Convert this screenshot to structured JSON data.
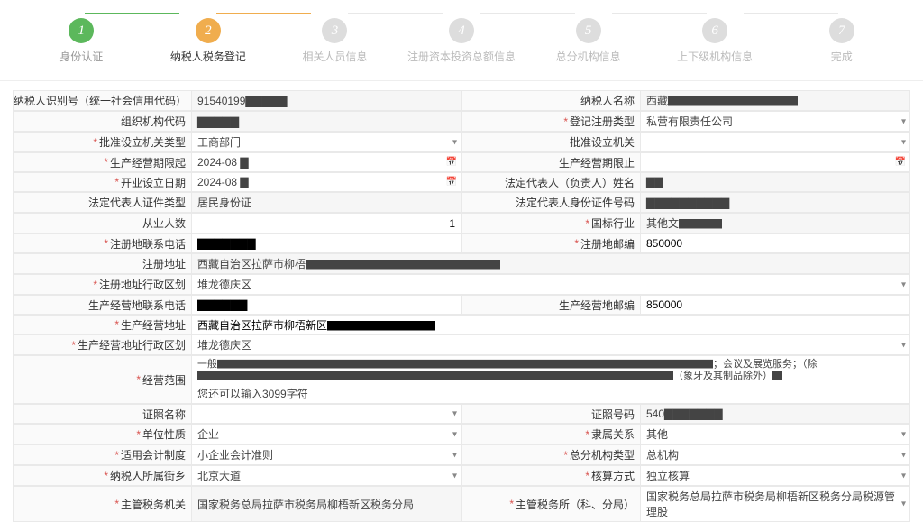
{
  "steps": [
    {
      "num": "1",
      "label": "身份认证",
      "state": "done"
    },
    {
      "num": "2",
      "label": "纳税人税务登记",
      "state": "active"
    },
    {
      "num": "3",
      "label": "相关人员信息",
      "state": "pending"
    },
    {
      "num": "4",
      "label": "注册资本投资总额信息",
      "state": "pending"
    },
    {
      "num": "5",
      "label": "总分机构信息",
      "state": "pending"
    },
    {
      "num": "6",
      "label": "上下级机构信息",
      "state": "pending"
    },
    {
      "num": "7",
      "label": "完成",
      "state": "pending"
    }
  ],
  "row1": {
    "l1": "纳税人识别号（统一社会信用代码）",
    "v1": "91540199▇▇▇▇▇",
    "l2": "纳税人名称",
    "v2": "西藏▇▇▇▇▇▇▇▇▇▇▇▇"
  },
  "row2": {
    "l1": "组织机构代码",
    "v1": "▇▇▇▇▇",
    "l2": "登记注册类型",
    "v2": "私营有限责任公司"
  },
  "row3": {
    "l1": "批准设立机关类型",
    "v1": "工商部门",
    "l2": "批准设立机关",
    "v2": ""
  },
  "row4": {
    "l1": "生产经营期限起",
    "v1": "2024-08 ▇",
    "l2": "生产经营期限止",
    "v2": ""
  },
  "row5": {
    "l1": "开业设立日期",
    "v1": "2024-08 ▇",
    "l2": "法定代表人（负责人）姓名",
    "v2": "▇▇"
  },
  "row6": {
    "l1": "法定代表人证件类型",
    "v1": "居民身份证",
    "l2": "法定代表人身份证件号码",
    "v2": "▇▇▇▇▇▇▇▇▇▇"
  },
  "row7": {
    "l1": "从业人数",
    "v1": "1",
    "l2": "国标行业",
    "v2": "其他文▇▇▇▇"
  },
  "row8": {
    "l1": "注册地联系电话",
    "v1": "▇▇▇▇▇▇▇",
    "l2": "注册地邮编",
    "v2": "850000"
  },
  "row9": {
    "l1": "注册地址",
    "v1": "西藏自治区拉萨市柳梧▇▇▇▇▇▇▇▇▇▇▇▇▇▇▇▇▇▇"
  },
  "row10": {
    "l1": "注册地址行政区划",
    "v1": "堆龙德庆区"
  },
  "row11": {
    "l1": "生产经营地联系电话",
    "v1": "▇▇▇▇▇▇",
    "l2": "生产经营地邮编",
    "v2": "850000"
  },
  "row12": {
    "l1": "生产经营地址",
    "v1": "西藏自治区拉萨市柳梧新区▇▇▇▇▇▇▇▇▇▇"
  },
  "row13": {
    "l1": "生产经营地址行政区划",
    "v1": "堆龙德庆区"
  },
  "row14": {
    "l1": "经营范围",
    "v1": "一般▇▇▇▇▇▇▇▇▇▇▇▇▇▇▇▇▇▇▇▇▇▇▇▇▇▇▇▇▇▇▇▇▇▇▇▇▇▇▇▇▇▇▇▇▇▇▇▇▇▇；会议及展览服务；（除▇▇▇▇▇▇▇▇▇▇▇▇▇▇▇▇▇▇▇▇▇▇▇▇▇▇▇▇▇▇▇▇▇▇▇▇▇▇▇▇▇▇▇▇▇▇▇▇（象牙及其制品除外）▇",
    "hint": "您还可以输入3099字符"
  },
  "row15": {
    "l1": "证照名称",
    "v1": "",
    "l2": "证照号码",
    "v2": "540▇▇▇▇▇▇▇"
  },
  "row16": {
    "l1": "单位性质",
    "v1": "企业",
    "l2": "隶属关系",
    "v2": "其他"
  },
  "row17": {
    "l1": "适用会计制度",
    "v1": "小企业会计准则",
    "l2": "总分机构类型",
    "v2": "总机构"
  },
  "row18": {
    "l1": "纳税人所属街乡",
    "v1": "北京大道",
    "l2": "核算方式",
    "v2": "独立核算"
  },
  "row19": {
    "l1": "主管税务机关",
    "v1": "国家税务总局拉萨市税务局柳梧新区税务分局",
    "l2": "主管税务所（科、分局）",
    "v2": "国家税务总局拉萨市税务局柳梧新区税务分局税源管理股"
  },
  "colors": {
    "done": "#5cb85c",
    "active": "#f0ad4e",
    "pending": "#dddddd",
    "border": "#e9e9e9",
    "readonly_bg": "#f6f6f6"
  }
}
